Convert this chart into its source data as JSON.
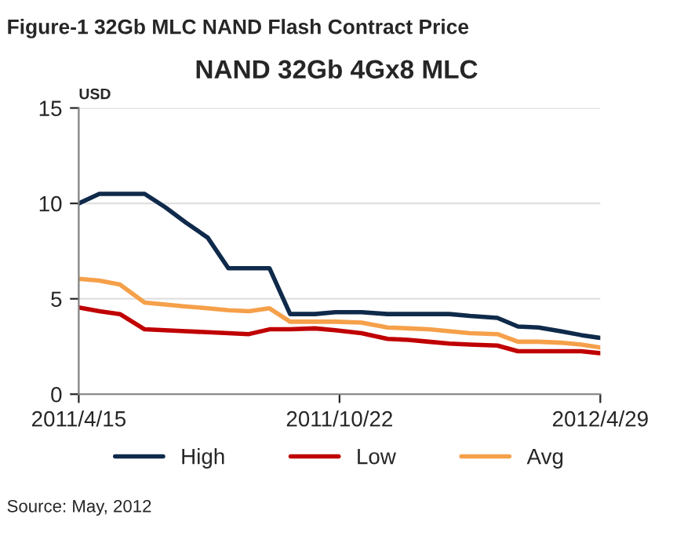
{
  "chart_data": {
    "type": "line",
    "title": "Figure-1 32Gb MLC NAND Flash Contract Price",
    "subtitle": "NAND 32Gb 4Gx8 MLC",
    "ylabel": "USD",
    "x": [
      "2011-04-15",
      "2011-04-30",
      "2011-05-15",
      "2011-06-02",
      "2011-06-17",
      "2011-07-02",
      "2011-07-18",
      "2011-08-02",
      "2011-08-17",
      "2011-09-01",
      "2011-09-16",
      "2011-10-04",
      "2011-10-19",
      "2011-11-07",
      "2011-11-26",
      "2011-12-11",
      "2011-12-26",
      "2012-01-10",
      "2012-01-25",
      "2012-02-14",
      "2012-02-29",
      "2012-03-15",
      "2012-03-31",
      "2012-04-15",
      "2012-04-29"
    ],
    "series": [
      {
        "name": "High",
        "color": "#0f2a4a",
        "values": [
          10,
          10.5,
          10.5,
          10.5,
          9.8,
          9.0,
          8.2,
          6.6,
          6.6,
          6.6,
          4.2,
          4.2,
          4.3,
          4.3,
          4.2,
          4.2,
          4.2,
          4.2,
          4.1,
          4.0,
          3.55,
          3.5,
          3.3,
          3.1,
          2.95
        ]
      },
      {
        "name": "Low",
        "color": "#c00000",
        "values": [
          4.55,
          4.35,
          4.2,
          3.4,
          3.35,
          3.3,
          3.25,
          3.2,
          3.15,
          3.4,
          3.4,
          3.45,
          3.35,
          3.2,
          2.9,
          2.85,
          2.75,
          2.65,
          2.6,
          2.55,
          2.25,
          2.25,
          2.25,
          2.25,
          2.15
        ]
      },
      {
        "name": "Avg",
        "color": "#f5a04a",
        "values": [
          6.05,
          5.95,
          5.75,
          4.8,
          4.7,
          4.6,
          4.5,
          4.4,
          4.35,
          4.5,
          3.8,
          3.8,
          3.8,
          3.75,
          3.5,
          3.45,
          3.4,
          3.3,
          3.2,
          3.15,
          2.75,
          2.75,
          2.7,
          2.6,
          2.45
        ]
      }
    ],
    "xlim": [
      "2011-04-15",
      "2012-04-29"
    ],
    "xticks": [
      {
        "value": "2011-04-15",
        "label": "2011/4/15"
      },
      {
        "value": "2011-10-22",
        "label": "2011/10/22"
      },
      {
        "value": "2012-04-29",
        "label": "2012/4/29"
      }
    ],
    "ylim": [
      0,
      15
    ],
    "yticks": [
      0,
      5,
      10,
      15
    ],
    "grid": "y",
    "legend": "bottom",
    "marker": "none",
    "line_style": "solid",
    "annotations": [
      "Source: May, 2012"
    ]
  }
}
